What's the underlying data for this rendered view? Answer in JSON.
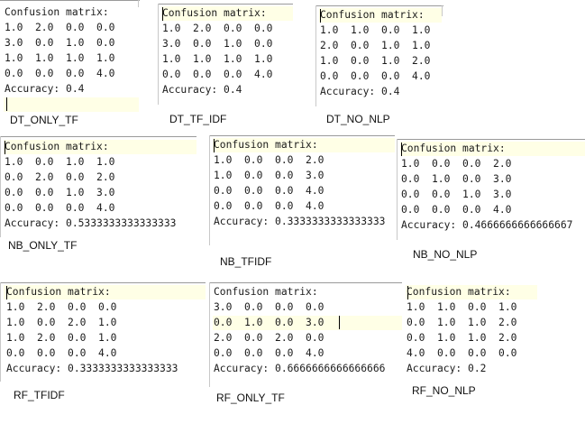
{
  "header_text": "Confusion matrix:",
  "accuracy_prefix": "Accuracy: ",
  "panels": [
    {
      "caption": "DT_ONLY_TF",
      "rows": [
        "1.0  2.0  0.0  0.0",
        "3.0  0.0  1.0  0.0",
        "1.0  1.0  1.0  1.0",
        "0.0  0.0  0.0  4.0"
      ],
      "accuracy": "0.4"
    },
    {
      "caption": "DT_TF_IDF",
      "rows": [
        "1.0  2.0  0.0  0.0",
        "3.0  0.0  1.0  0.0",
        "1.0  1.0  1.0  1.0",
        "0.0  0.0  0.0  4.0"
      ],
      "accuracy": "0.4"
    },
    {
      "caption": "DT_NO_NLP",
      "rows": [
        "1.0  1.0  0.0  1.0",
        "2.0  0.0  1.0  1.0",
        "1.0  0.0  1.0  2.0",
        "0.0  0.0  0.0  4.0"
      ],
      "accuracy": "0.4"
    },
    {
      "caption": "NB_ONLY_TF",
      "rows": [
        "1.0  0.0  1.0  1.0",
        "0.0  2.0  0.0  2.0",
        "0.0  0.0  1.0  3.0",
        "0.0  0.0  0.0  4.0"
      ],
      "accuracy": "0.5333333333333333"
    },
    {
      "caption": "NB_TFIDF",
      "rows": [
        "1.0  0.0  0.0  2.0",
        "1.0  0.0  0.0  3.0",
        "0.0  0.0  0.0  4.0",
        "0.0  0.0  0.0  4.0"
      ],
      "accuracy": "0.3333333333333333"
    },
    {
      "caption": "NB_NO_NLP",
      "rows": [
        "1.0  0.0  0.0  2.0",
        "0.0  1.0  0.0  3.0",
        "0.0  0.0  1.0  3.0",
        "0.0  0.0  0.0  4.0"
      ],
      "accuracy": "0.4666666666666667"
    },
    {
      "caption": "RF_TFIDF",
      "rows": [
        "1.0  2.0  0.0  0.0",
        "1.0  0.0  2.0  1.0",
        "1.0  2.0  0.0  1.0",
        "0.0  0.0  0.0  4.0"
      ],
      "accuracy": "0.3333333333333333"
    },
    {
      "caption": "RF_ONLY_TF",
      "rows": [
        "3.0  0.0  0.0  0.0",
        "0.0  1.0  0.0  3.0",
        "2.0  0.0  2.0  0.0",
        "0.0  0.0  0.0  4.0"
      ],
      "accuracy": "0.6666666666666666"
    },
    {
      "caption": "RF_NO_NLP",
      "rows": [
        "1.0  1.0  0.0  1.0",
        "0.0  1.0  1.0  2.0",
        "0.0  1.0  1.0  2.0",
        "4.0  0.0  0.0  0.0"
      ],
      "accuracy": "0.2"
    }
  ]
}
